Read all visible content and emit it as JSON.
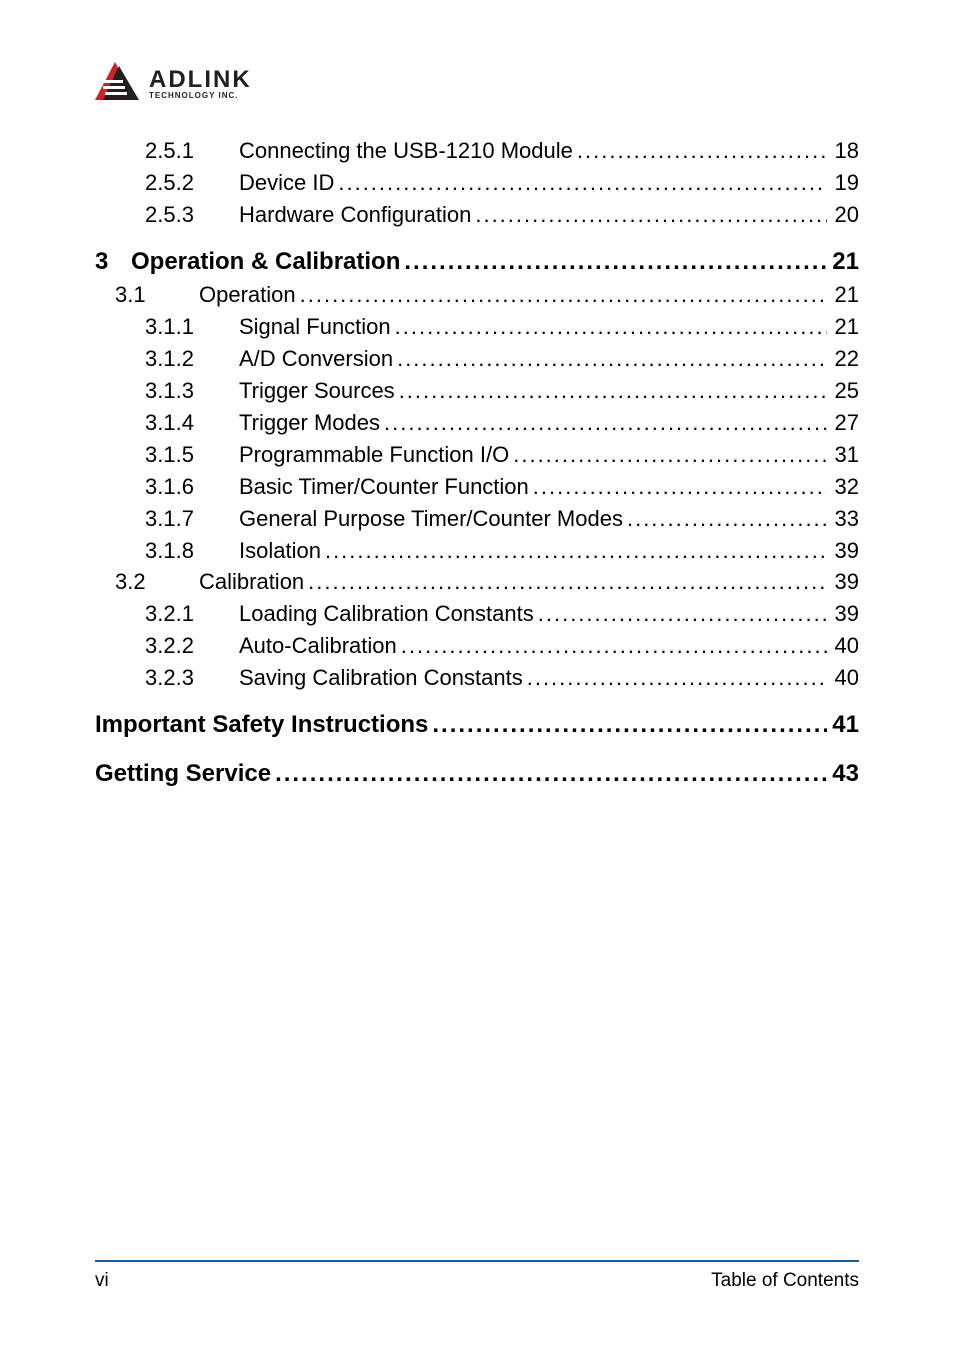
{
  "logo": {
    "main": "ADLINK",
    "sub": "TECHNOLOGY INC.",
    "mark_colors": {
      "red": "#c8232a",
      "dark": "#231f20"
    }
  },
  "toc": [
    {
      "type": "sub",
      "num": "2.5.1",
      "title": "Connecting the USB-1210 Module",
      "page": "18"
    },
    {
      "type": "sub",
      "num": "2.5.2",
      "title": "Device ID",
      "page": "19"
    },
    {
      "type": "sub",
      "num": "2.5.3",
      "title": "Hardware Configuration",
      "page": "20"
    },
    {
      "type": "gap"
    },
    {
      "type": "chapter",
      "num": "3",
      "title": "Operation & Calibration",
      "page": "21",
      "bold": true
    },
    {
      "type": "section",
      "num": "3.1",
      "title": "Operation",
      "page": "21"
    },
    {
      "type": "sub",
      "num": "3.1.1",
      "title": "Signal Function",
      "page": "21"
    },
    {
      "type": "sub",
      "num": "3.1.2",
      "title": "A/D Conversion",
      "page": "22"
    },
    {
      "type": "sub",
      "num": "3.1.3",
      "title": "Trigger Sources",
      "page": "25"
    },
    {
      "type": "sub",
      "num": "3.1.4",
      "title": "Trigger Modes",
      "page": "27"
    },
    {
      "type": "sub",
      "num": "3.1.5",
      "title": "Programmable Function I/O",
      "page": "31"
    },
    {
      "type": "sub",
      "num": "3.1.6",
      "title": "Basic Timer/Counter Function",
      "page": "32"
    },
    {
      "type": "sub",
      "num": "3.1.7",
      "title": "General Purpose Timer/Counter Modes",
      "page": "33"
    },
    {
      "type": "sub",
      "num": "3.1.8",
      "title": "Isolation",
      "page": "39"
    },
    {
      "type": "section",
      "num": "3.2",
      "title": "Calibration",
      "page": "39"
    },
    {
      "type": "sub",
      "num": "3.2.1",
      "title": "Loading Calibration Constants",
      "page": "39"
    },
    {
      "type": "sub",
      "num": "3.2.2",
      "title": "Auto-Calibration",
      "page": "40"
    },
    {
      "type": "sub",
      "num": "3.2.3",
      "title": "Saving Calibration Constants",
      "page": "40"
    },
    {
      "type": "gap"
    },
    {
      "type": "top",
      "num": "",
      "title": "Important Safety Instructions",
      "page": "41",
      "bold": true
    },
    {
      "type": "gap"
    },
    {
      "type": "top",
      "num": "",
      "title": "Getting Service",
      "page": "43",
      "bold": true
    }
  ],
  "footer": {
    "left": "vi",
    "right": "Table of Contents",
    "line_color": "#1a5d9a"
  },
  "styles": {
    "body_font_size": 22,
    "chapter_font_size": 24,
    "text_color": "#000000",
    "background": "#ffffff"
  }
}
